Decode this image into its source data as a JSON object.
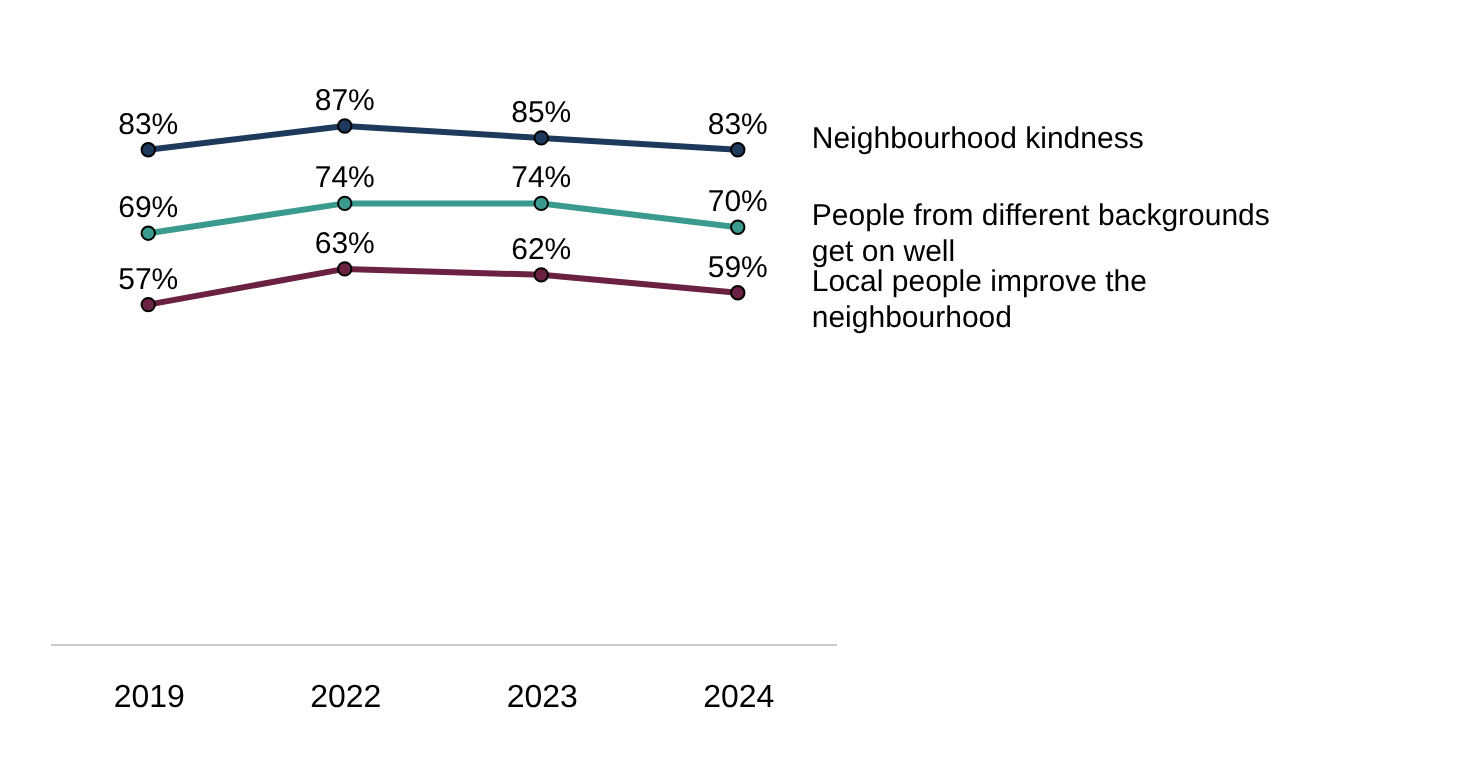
{
  "chart_data": {
    "type": "line",
    "relative": false,
    "categories": [
      "2019",
      "2022",
      "2023",
      "2024"
    ],
    "legend": "right",
    "marker": "circle",
    "line_style": "solid",
    "grid": false,
    "series": [
      {
        "name": "Neighbourhood kindness",
        "color": "#1d3a5c",
        "values": [
          83,
          87,
          85,
          83
        ],
        "value_labels": [
          "83%",
          "87%",
          "85%",
          "83%"
        ]
      },
      {
        "name": "People from different backgrounds get on well",
        "color": "#3a9a8e",
        "values": [
          69,
          74,
          74,
          70
        ],
        "value_labels": [
          "69%",
          "74%",
          "74%",
          "70%"
        ]
      },
      {
        "name": "Local people improve the neighbourhood",
        "color": "#6b2142",
        "values": [
          57,
          63,
          62,
          59
        ],
        "value_labels": [
          "57%",
          "63%",
          "62%",
          "59%"
        ]
      }
    ]
  }
}
